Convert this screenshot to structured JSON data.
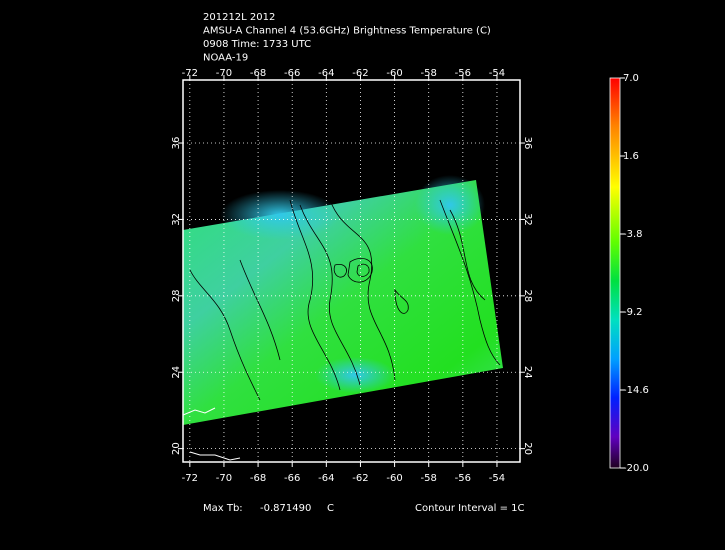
{
  "header": {
    "lines": [
      "201212L 2012",
      "AMSU-A Channel 4 (53.6GHz) Brightness Temperature (C)",
      "0908 Time: 1733 UTC",
      "NOAA-19"
    ]
  },
  "map": {
    "xlim": [
      -72.4,
      -52.65
    ],
    "ylim": [
      19.3,
      39.3
    ],
    "xticks": [
      -72,
      -70,
      -68,
      -66,
      -64,
      -62,
      -60,
      -58,
      -56,
      -54
    ],
    "yticks": [
      20,
      24,
      28,
      32,
      36
    ]
  },
  "colorbar": {
    "lim": [
      -20,
      7
    ],
    "ticks": [
      {
        "value": 7,
        "label": "7.0"
      },
      1.6,
      -3.8,
      -9.2,
      -14.6,
      {
        "value": -20,
        "label": "-20.0"
      }
    ]
  },
  "footer": {
    "max_label": "Max Tb:",
    "max_value": "-0.871490",
    "unit": "C",
    "contour": "Contour Interval = 1C"
  }
}
